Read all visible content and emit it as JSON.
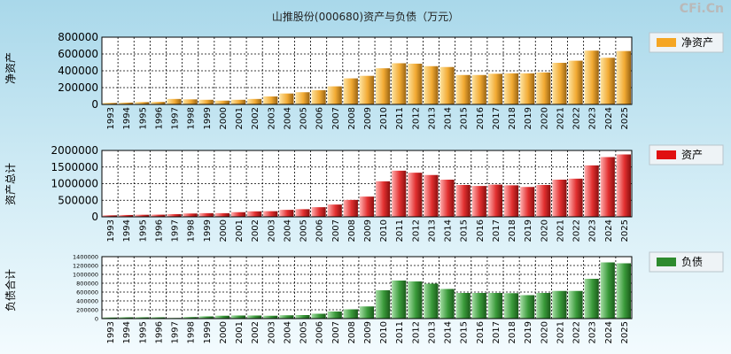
{
  "title": "山推股份(000680)资产与负债（万元）",
  "watermark": "CFi.Cn",
  "chart_data": [
    {
      "type": "bar",
      "title": "山推股份(000680)资产与负债（万元）",
      "ylabel": "净资产",
      "legend": "净资产",
      "color": "#f5a623",
      "ylim": [
        0,
        800000
      ],
      "yticks": [
        0,
        200000,
        400000,
        600000,
        800000
      ],
      "ytick_labels": [
        "0",
        "200000",
        "400000",
        "600000",
        "800000"
      ],
      "categories": [
        "1993",
        "1994",
        "1995",
        "1996",
        "1997",
        "1998",
        "1999",
        "2000",
        "2001",
        "2002",
        "2003",
        "2004",
        "2005",
        "2006",
        "2007",
        "2008",
        "2009",
        "2010",
        "2011",
        "2012",
        "2013",
        "2014",
        "2015",
        "2016",
        "2017",
        "2018",
        "2019",
        "2020",
        "2021",
        "2022",
        "2023",
        "2024",
        "2025"
      ],
      "values": [
        18000,
        22000,
        28000,
        30000,
        65000,
        60000,
        55000,
        45000,
        55000,
        65000,
        95000,
        130000,
        145000,
        170000,
        215000,
        310000,
        340000,
        430000,
        490000,
        485000,
        455000,
        445000,
        350000,
        350000,
        365000,
        370000,
        370000,
        380000,
        495000,
        520000,
        640000,
        555000,
        635000
      ]
    },
    {
      "type": "bar",
      "ylabel": "资产总计",
      "legend": "资产",
      "color": "#e01010",
      "ylim": [
        0,
        2000000
      ],
      "yticks": [
        0,
        500000,
        1000000,
        1500000,
        2000000
      ],
      "ytick_labels": [
        "0",
        "500000",
        "1000000",
        "1500000",
        "2000000"
      ],
      "categories": [
        "1993",
        "1994",
        "1995",
        "1996",
        "1997",
        "1998",
        "1999",
        "2000",
        "2001",
        "2002",
        "2003",
        "2004",
        "2005",
        "2006",
        "2007",
        "2008",
        "2009",
        "2010",
        "2011",
        "2012",
        "2013",
        "2014",
        "2015",
        "2016",
        "2017",
        "2018",
        "2019",
        "2020",
        "2021",
        "2022",
        "2023",
        "2024",
        "2025"
      ],
      "values": [
        45000,
        55000,
        62000,
        65000,
        80000,
        100000,
        110000,
        110000,
        140000,
        165000,
        170000,
        210000,
        230000,
        290000,
        370000,
        510000,
        610000,
        1070000,
        1390000,
        1330000,
        1260000,
        1120000,
        960000,
        930000,
        970000,
        950000,
        900000,
        960000,
        1120000,
        1150000,
        1550000,
        1800000,
        1880000
      ]
    },
    {
      "type": "bar",
      "ylabel": "负债合计",
      "legend": "负债",
      "color": "#2e8b2e",
      "ylim": [
        0,
        1400000
      ],
      "yticks": [
        0,
        200000,
        400000,
        600000,
        800000,
        1000000,
        1200000,
        1400000
      ],
      "ytick_labels": [
        "0",
        "200000",
        "400000",
        "600000",
        "800000",
        "1000000",
        "1200000",
        "1400000"
      ],
      "categories": [
        "1993",
        "1994",
        "1995",
        "1996",
        "1997",
        "1998",
        "1999",
        "2000",
        "2001",
        "2002",
        "2003",
        "2004",
        "2005",
        "2006",
        "2007",
        "2008",
        "2009",
        "2010",
        "2011",
        "2012",
        "2013",
        "2014",
        "2015",
        "2016",
        "2017",
        "2018",
        "2019",
        "2020",
        "2021",
        "2022",
        "2023",
        "2024",
        "2025"
      ],
      "values": [
        25000,
        30000,
        30000,
        30000,
        15000,
        35000,
        50000,
        65000,
        70000,
        70000,
        65000,
        75000,
        80000,
        110000,
        160000,
        210000,
        275000,
        640000,
        860000,
        840000,
        790000,
        670000,
        580000,
        580000,
        580000,
        575000,
        530000,
        580000,
        625000,
        625000,
        900000,
        1270000,
        1250000
      ]
    }
  ]
}
